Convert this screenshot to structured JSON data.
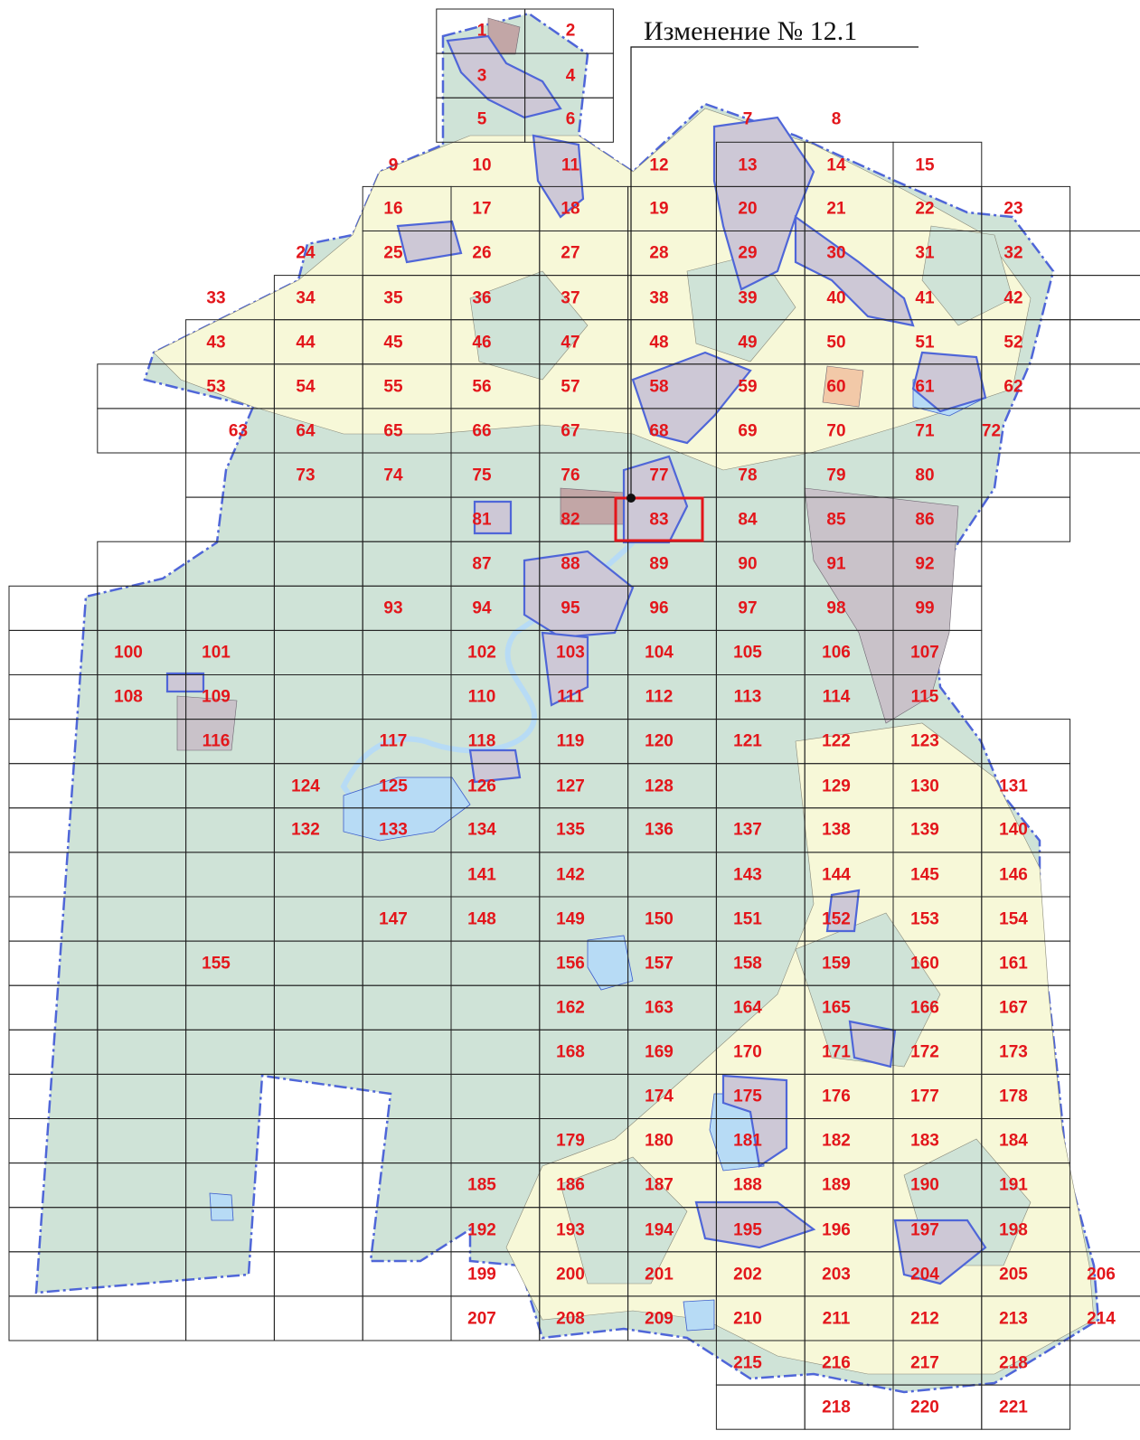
{
  "title": "Изменение № 12.1",
  "colors": {
    "forest": "#cfe3d7",
    "farmland": "#f7f8d8",
    "settlement": "#c9c2c9",
    "district_border": "#4f66d8",
    "water": "#b7dbf5",
    "label": "#e3161b",
    "highlight": "#e3161b"
  },
  "highlighted_sheet": "83",
  "sheets": [
    "1",
    "2",
    "3",
    "4",
    "5",
    "6",
    "7",
    "8",
    "9",
    "10",
    "11",
    "12",
    "13",
    "14",
    "15",
    "16",
    "17",
    "18",
    "19",
    "20",
    "21",
    "22",
    "23",
    "24",
    "25",
    "26",
    "27",
    "28",
    "29",
    "30",
    "31",
    "32",
    "33",
    "34",
    "35",
    "36",
    "37",
    "38",
    "39",
    "40",
    "41",
    "42",
    "43",
    "44",
    "45",
    "46",
    "47",
    "48",
    "49",
    "50",
    "51",
    "52",
    "53",
    "54",
    "55",
    "56",
    "57",
    "58",
    "59",
    "60",
    "61",
    "62",
    "63",
    "64",
    "65",
    "66",
    "67",
    "68",
    "69",
    "70",
    "71",
    "72",
    "73",
    "74",
    "75",
    "76",
    "77",
    "78",
    "79",
    "80",
    "81",
    "82",
    "83",
    "84",
    "85",
    "86",
    "87",
    "88",
    "89",
    "90",
    "91",
    "92",
    "93",
    "94",
    "95",
    "96",
    "97",
    "98",
    "99",
    "100",
    "101",
    "102",
    "103",
    "104",
    "105",
    "106",
    "107",
    "108",
    "109",
    "110",
    "111",
    "112",
    "113",
    "114",
    "115",
    "116",
    "117",
    "118",
    "119",
    "120",
    "121",
    "122",
    "123",
    "124",
    "125",
    "126",
    "127",
    "128",
    "129",
    "130",
    "131",
    "132",
    "133",
    "134",
    "135",
    "136",
    "137",
    "138",
    "139",
    "140",
    "141",
    "142",
    "143",
    "144",
    "145",
    "146",
    "147",
    "148",
    "149",
    "150",
    "151",
    "152",
    "153",
    "154",
    "155",
    "156",
    "157",
    "158",
    "159",
    "160",
    "161",
    "162",
    "163",
    "164",
    "165",
    "166",
    "167",
    "168",
    "169",
    "170",
    "171",
    "172",
    "173",
    "174",
    "175",
    "176",
    "177",
    "178",
    "179",
    "180",
    "181",
    "182",
    "183",
    "184",
    "185",
    "186",
    "187",
    "188",
    "189",
    "190",
    "191",
    "192",
    "193",
    "194",
    "195",
    "196",
    "197",
    "198",
    "199",
    "200",
    "201",
    "202",
    "203",
    "204",
    "205",
    "206",
    "207",
    "208",
    "209",
    "210",
    "211",
    "212",
    "213",
    "214",
    "215",
    "216",
    "217",
    "218",
    "218",
    "220",
    "221"
  ]
}
